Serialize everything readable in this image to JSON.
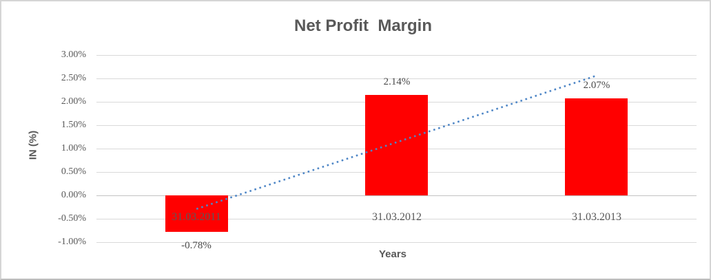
{
  "chart_data": {
    "type": "bar",
    "title": "Net Profit  Margin",
    "xlabel": "Years",
    "ylabel": "IN (%)",
    "categories": [
      "31.03.2011",
      "31.03.2012",
      "31.03.2013"
    ],
    "series": [
      {
        "name": "Net Profit Margin",
        "values": [
          -0.78,
          2.14,
          2.07
        ]
      }
    ],
    "data_labels": [
      "-0.78%",
      "2.14%",
      "2.07%"
    ],
    "y_axis": {
      "min": -1,
      "max": 3,
      "ticks": [
        3,
        2.5,
        2,
        1.5,
        1,
        0.5,
        0,
        -0.5,
        -1
      ],
      "tick_labels": [
        "3.00%",
        "2.50%",
        "2.00%",
        "1.50%",
        "1.00%",
        "0.50%",
        "0.00%",
        "-0.50%",
        "-1.00%"
      ]
    },
    "grid": true,
    "legend": "none",
    "trendline": {
      "type": "linear",
      "style": "dotted",
      "start": {
        "category_index": 0,
        "value": -0.29
      },
      "end": {
        "category_index": 2,
        "value": 2.56
      }
    }
  },
  "colors": {
    "bar": "#ff0000",
    "trendline": "#4e86c6",
    "gridline": "#d9d9d9",
    "zero_line": "#c3c3c3",
    "text": "#595959",
    "data_label": "#4a4a4a",
    "frame_border": "#d5d5d5"
  }
}
